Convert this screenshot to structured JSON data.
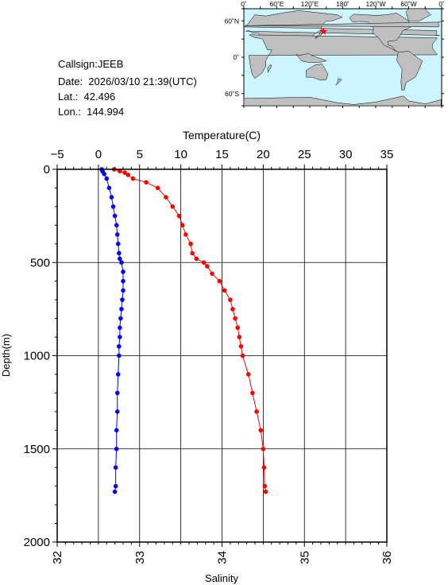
{
  "info": {
    "callsign": "Callsign:JEEB",
    "date": "Date:  2026/03/10 21:39(UTC)",
    "lat": "Lat.:  42.496",
    "lon": "Lon.:  144.994"
  },
  "map": {
    "top_ticks": [
      "0˚",
      "60˚E",
      "120˚E",
      "180˚",
      "120˚W",
      "60˚W",
      "0˚"
    ],
    "left_ticks": [
      "60˚N",
      "0˚",
      "60˚S"
    ],
    "ocean_color": "#ccf5ff",
    "land_color": "#bfbfbf",
    "marker_color": "#ff0000",
    "marker": {
      "lon": 144.994,
      "lat": 42.496
    }
  },
  "chart_data": {
    "type": "scatter",
    "title": "",
    "temperature_axis": {
      "label": "Temperature(C)",
      "range": [
        -5,
        35
      ],
      "ticks": [
        "-5",
        "0",
        "5",
        "10",
        "15",
        "20",
        "25",
        "30",
        "35"
      ]
    },
    "salinity_axis": {
      "label": "Salinity",
      "range": [
        32,
        36
      ],
      "ticks": [
        "32",
        "33",
        "34",
        "35",
        "36"
      ]
    },
    "depth_axis": {
      "label": "Depth(m)",
      "range": [
        0,
        2000
      ],
      "ticks": [
        "0",
        "500",
        "1000",
        "1500",
        "2000"
      ]
    },
    "grid": true,
    "series": [
      {
        "quantity": "temperature",
        "color": "#ff0000",
        "points": [
          [
            1.9,
            0
          ],
          [
            2.6,
            10
          ],
          [
            3.2,
            18
          ],
          [
            3.6,
            30
          ],
          [
            4.2,
            50
          ],
          [
            5.8,
            70
          ],
          [
            7.2,
            100
          ],
          [
            8.2,
            150
          ],
          [
            9.0,
            200
          ],
          [
            9.8,
            250
          ],
          [
            10.2,
            300
          ],
          [
            10.6,
            350
          ],
          [
            11.2,
            400
          ],
          [
            11.4,
            450
          ],
          [
            11.9,
            480
          ],
          [
            12.8,
            500
          ],
          [
            13.2,
            520
          ],
          [
            13.8,
            560
          ],
          [
            14.7,
            600
          ],
          [
            15.3,
            650
          ],
          [
            16.0,
            700
          ],
          [
            16.3,
            750
          ],
          [
            16.6,
            800
          ],
          [
            16.9,
            850
          ],
          [
            17.1,
            900
          ],
          [
            17.3,
            950
          ],
          [
            17.5,
            1000
          ],
          [
            18.2,
            1100
          ],
          [
            18.7,
            1200
          ],
          [
            19.2,
            1300
          ],
          [
            19.7,
            1400
          ],
          [
            20.0,
            1500
          ],
          [
            20.1,
            1600
          ],
          [
            20.2,
            1700
          ],
          [
            20.3,
            1730
          ]
        ]
      },
      {
        "quantity": "salinity",
        "color": "#0000ff",
        "points": [
          [
            32.54,
            0
          ],
          [
            32.55,
            10
          ],
          [
            32.57,
            25
          ],
          [
            32.6,
            50
          ],
          [
            32.63,
            100
          ],
          [
            32.66,
            150
          ],
          [
            32.68,
            200
          ],
          [
            32.7,
            250
          ],
          [
            32.72,
            300
          ],
          [
            32.73,
            350
          ],
          [
            32.74,
            400
          ],
          [
            32.75,
            450
          ],
          [
            32.76,
            480
          ],
          [
            32.78,
            500
          ],
          [
            32.8,
            550
          ],
          [
            32.8,
            600
          ],
          [
            32.8,
            650
          ],
          [
            32.79,
            700
          ],
          [
            32.78,
            750
          ],
          [
            32.77,
            800
          ],
          [
            32.76,
            850
          ],
          [
            32.76,
            900
          ],
          [
            32.75,
            950
          ],
          [
            32.75,
            1000
          ],
          [
            32.74,
            1100
          ],
          [
            32.73,
            1200
          ],
          [
            32.73,
            1300
          ],
          [
            32.72,
            1400
          ],
          [
            32.72,
            1500
          ],
          [
            32.71,
            1600
          ],
          [
            32.71,
            1700
          ],
          [
            32.7,
            1730
          ]
        ]
      }
    ]
  }
}
